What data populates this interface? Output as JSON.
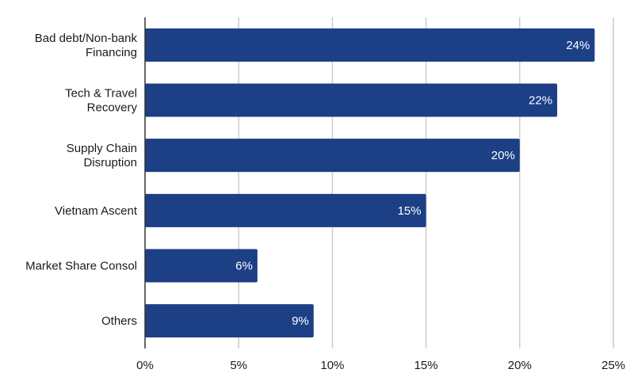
{
  "chart_data": {
    "type": "bar",
    "orientation": "horizontal",
    "categories": [
      [
        "Bad debt/Non-bank",
        "Financing"
      ],
      [
        "Tech & Travel",
        "Recovery"
      ],
      [
        "Supply Chain",
        "Disruption"
      ],
      [
        "Vietnam Ascent"
      ],
      [
        "Market Share Consol"
      ],
      [
        "Others"
      ]
    ],
    "values": [
      24,
      22,
      20,
      15,
      6,
      9
    ],
    "data_labels": [
      "24%",
      "22%",
      "20%",
      "15%",
      "6%",
      "9%"
    ],
    "x_ticks": [
      0,
      5,
      10,
      15,
      20,
      25
    ],
    "x_tick_labels": [
      "0%",
      "5%",
      "10%",
      "15%",
      "20%",
      "25%"
    ],
    "xlim": [
      0,
      25
    ],
    "grid": true,
    "legend": "none",
    "bar_color": "#1c3f86",
    "title": "",
    "xlabel": "",
    "ylabel": ""
  }
}
